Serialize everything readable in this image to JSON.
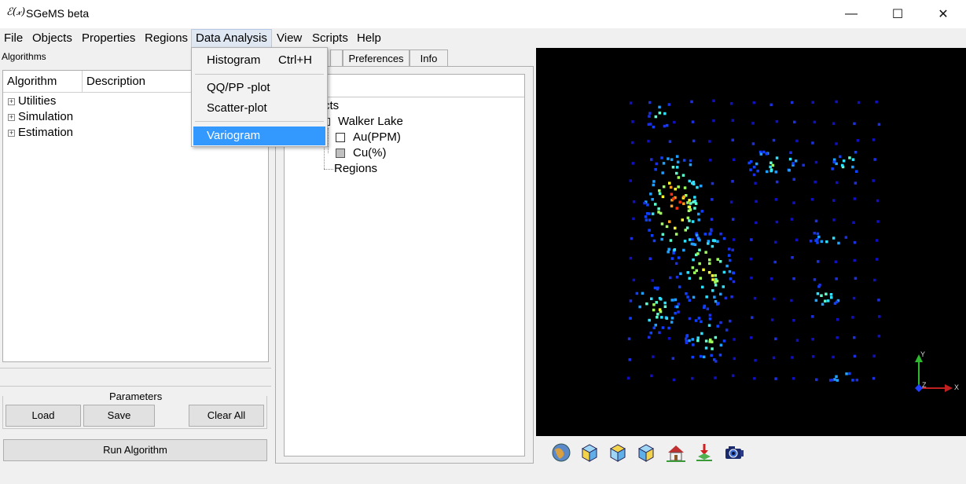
{
  "window": {
    "app_icon": "ℰ(𝓍)",
    "title": "SGeMS beta",
    "minimize": "—",
    "maximize": "☐",
    "close": "✕"
  },
  "menubar": {
    "items": [
      "File",
      "Objects",
      "Properties",
      "Regions",
      "Data Analysis",
      "View",
      "Scripts",
      "Help"
    ]
  },
  "data_analysis_menu": {
    "items": [
      {
        "label": "Histogram",
        "shortcut": "Ctrl+H"
      },
      {
        "label": "QQ/PP -plot",
        "shortcut": ""
      },
      {
        "label": "Scatter-plot",
        "shortcut": ""
      },
      {
        "label": "Variogram",
        "shortcut": ""
      }
    ]
  },
  "left_panel": {
    "label": "Algorithms",
    "columns": [
      "Algorithm",
      "Description"
    ],
    "tree": [
      "Utilities",
      "Simulation",
      "Estimation"
    ],
    "parameters_label": "Parameters",
    "load": "Load",
    "save": "Save",
    "clear_all": "Clear All",
    "run": "Run Algorithm"
  },
  "middle_panel": {
    "tabs": [
      "Preferences",
      "Info"
    ],
    "header_fragment": "",
    "objects_label": "cts",
    "objects": {
      "grid": "Walker Lake",
      "properties": [
        {
          "name": "Au(PPM)",
          "checked": false
        },
        {
          "name": "Cu(%)",
          "checked": true
        }
      ],
      "regions": "Regions"
    }
  },
  "viewer": {
    "axis_x": "X",
    "axis_y": "Y",
    "axis_z": "Z",
    "toolbar_icons": [
      "globe-view-icon",
      "cube-front-icon",
      "cube-top-icon",
      "cube-side-icon",
      "home-view-icon",
      "set-home-icon",
      "camera-icon"
    ]
  },
  "colors": {
    "selection": "#3399ff",
    "viewer_bg": "#000000"
  }
}
